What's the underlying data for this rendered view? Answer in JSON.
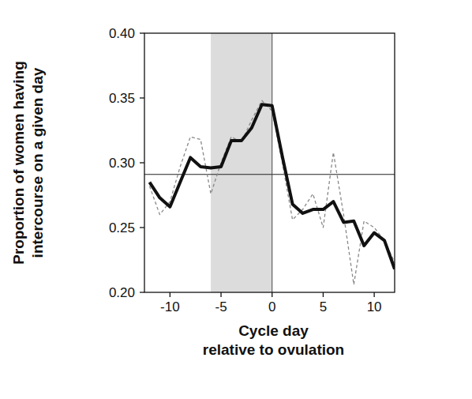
{
  "chart_data": {
    "type": "line",
    "x_label": [
      "Cycle day",
      "relative to ovulation"
    ],
    "y_label": [
      "Proportion of women having",
      "intercourse on a given day"
    ],
    "x": [
      -12,
      -11,
      -10,
      -9,
      -8,
      -7,
      -6,
      -5,
      -4,
      -3,
      -2,
      -1,
      0,
      1,
      2,
      3,
      4,
      5,
      6,
      7,
      8,
      9,
      10,
      11,
      12
    ],
    "series": [
      {
        "color": "#111111",
        "line_style": "solid",
        "values": [
          0.285,
          0.273,
          0.266,
          0.285,
          0.304,
          0.297,
          0.296,
          0.297,
          0.317,
          0.317,
          0.327,
          0.345,
          0.344,
          0.305,
          0.268,
          0.261,
          0.264,
          0.264,
          0.27,
          0.254,
          0.255,
          0.236,
          0.246,
          0.24,
          0.218
        ]
      },
      {
        "color": "#888888",
        "line_style": "dashed",
        "values": [
          0.282,
          0.26,
          0.27,
          0.297,
          0.32,
          0.318,
          0.276,
          0.3,
          0.32,
          0.316,
          0.333,
          0.348,
          0.34,
          0.3,
          0.256,
          0.264,
          0.276,
          0.25,
          0.308,
          0.26,
          0.206,
          0.255,
          0.25,
          0.24,
          0.223
        ]
      }
    ],
    "shaded_range": [
      -6,
      0
    ],
    "reference_y": 0.291,
    "reference_x": 0,
    "xlim": [
      -12.5,
      12
    ],
    "ylim": [
      0.2,
      0.4
    ],
    "xticks": [
      -10,
      -5,
      0,
      5,
      10
    ],
    "yticks": [
      {
        "value": 0.2,
        "label": "0.20"
      },
      {
        "value": 0.25,
        "label": "0.25"
      },
      {
        "value": 0.3,
        "label": "0.30"
      },
      {
        "value": 0.35,
        "label": "0.35"
      },
      {
        "value": 0.4,
        "label": "0.40"
      }
    ],
    "grid": false
  }
}
